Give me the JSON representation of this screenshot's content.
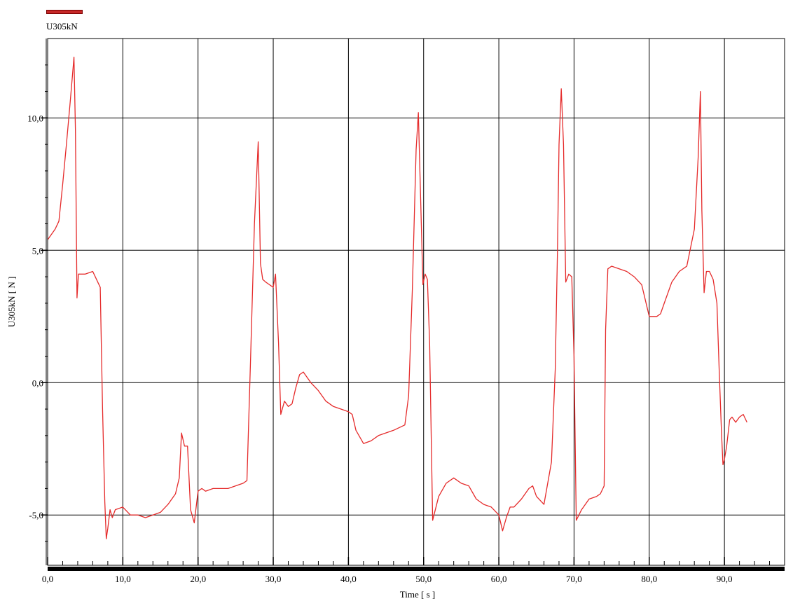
{
  "legend": {
    "label": "U305kN",
    "color": "#c62828"
  },
  "chart_data": {
    "type": "line",
    "title": "",
    "xlabel": "Time [ s ]",
    "ylabel": "U305kN [ N ]",
    "xlim": [
      0,
      98
    ],
    "ylim": [
      -6.9,
      13.0
    ],
    "x_tick_values": [
      0,
      10,
      20,
      30,
      40,
      50,
      60,
      70,
      80,
      90
    ],
    "x_tick_labels": [
      "0,0",
      "10,0",
      "20,0",
      "30,0",
      "40,0",
      "50,0",
      "60,0",
      "70,0",
      "80,0",
      "90,0"
    ],
    "y_tick_values": [
      -5,
      0,
      5,
      10
    ],
    "y_tick_labels": [
      "-5,0",
      "0,0",
      "5,0",
      "10,0"
    ],
    "grid": true,
    "legend_position": "top-left",
    "series": [
      {
        "name": "U305kN",
        "color": "#e52b2b",
        "x": [
          0,
          0.5,
          1.0,
          1.5,
          2.0,
          2.5,
          3.0,
          3.3,
          3.5,
          3.7,
          3.9,
          4.1,
          5.0,
          6.0,
          7.0,
          7.3,
          7.6,
          7.8,
          8.0,
          8.3,
          8.6,
          9.0,
          10.0,
          11.0,
          12.0,
          13.0,
          14.0,
          15.0,
          16.0,
          17.0,
          17.5,
          17.8,
          18.2,
          18.6,
          19.0,
          19.5,
          20.0,
          20.5,
          21.0,
          22.0,
          24.0,
          26.0,
          26.5,
          27.0,
          27.5,
          28.0,
          28.3,
          28.6,
          29.0,
          30.0,
          30.3,
          30.7,
          31.0,
          31.5,
          32.0,
          32.5,
          33.0,
          33.5,
          34.0,
          35.0,
          36.0,
          37.0,
          38.0,
          39.0,
          40.0,
          40.5,
          41.0,
          42.0,
          43.0,
          44.0,
          46.0,
          47.5,
          48.0,
          48.5,
          49.0,
          49.3,
          49.6,
          49.9,
          50.2,
          50.5,
          50.8,
          51.2,
          52.0,
          53.0,
          54.0,
          55.0,
          56.0,
          57.0,
          58.0,
          59.0,
          60.0,
          60.5,
          61.0,
          61.5,
          62.0,
          63.0,
          64.0,
          64.5,
          65.0,
          66.0,
          67.0,
          67.5,
          67.8,
          68.0,
          68.3,
          68.6,
          68.9,
          69.3,
          69.7,
          70.0,
          70.3,
          71.0,
          72.0,
          73.0,
          73.5,
          74.0,
          74.2,
          74.5,
          75.0,
          76.0,
          77.0,
          78.0,
          79.0,
          80.0,
          81.0,
          81.5,
          82.0,
          83.0,
          84.0,
          85.0,
          86.0,
          86.5,
          86.8,
          87.0,
          87.3,
          87.6,
          88.0,
          88.5,
          89.0,
          89.3,
          89.6,
          89.8,
          90.0,
          90.3,
          90.7,
          91.0,
          91.5,
          92.0,
          92.5,
          93.0
        ],
        "y": [
          5.4,
          5.6,
          5.8,
          6.1,
          7.5,
          9.0,
          10.6,
          11.6,
          12.3,
          9.5,
          3.2,
          4.1,
          4.1,
          4.2,
          3.6,
          -1.0,
          -4.5,
          -5.9,
          -5.5,
          -4.8,
          -5.1,
          -4.8,
          -4.7,
          -5.0,
          -5.0,
          -5.1,
          -5.0,
          -4.9,
          -4.6,
          -4.2,
          -3.6,
          -1.9,
          -2.4,
          -2.4,
          -4.8,
          -5.3,
          -4.1,
          -4.0,
          -4.1,
          -4.0,
          -4.0,
          -3.8,
          -3.7,
          1.0,
          6.0,
          9.1,
          4.5,
          3.9,
          3.8,
          3.6,
          4.1,
          1.5,
          -1.2,
          -0.7,
          -0.9,
          -0.8,
          -0.2,
          0.3,
          0.4,
          0.0,
          -0.3,
          -0.7,
          -0.9,
          -1.0,
          -1.1,
          -1.2,
          -1.8,
          -2.3,
          -2.2,
          -2.0,
          -1.8,
          -1.6,
          -0.5,
          3.5,
          8.8,
          10.2,
          7.0,
          3.7,
          4.1,
          3.9,
          1.5,
          -5.2,
          -4.3,
          -3.8,
          -3.6,
          -3.8,
          -3.9,
          -4.4,
          -4.6,
          -4.7,
          -5.0,
          -5.6,
          -5.1,
          -4.7,
          -4.7,
          -4.4,
          -4.0,
          -3.9,
          -4.3,
          -4.6,
          -3.0,
          0.5,
          5.0,
          9.0,
          11.1,
          9.0,
          3.8,
          4.1,
          4.0,
          1.0,
          -5.2,
          -4.8,
          -4.4,
          -4.3,
          -4.2,
          -3.9,
          2.0,
          4.3,
          4.4,
          4.3,
          4.2,
          4.0,
          3.7,
          2.5,
          2.5,
          2.6,
          3.0,
          3.8,
          4.2,
          4.4,
          5.8,
          8.5,
          11.0,
          6.5,
          3.4,
          4.2,
          4.2,
          3.9,
          3.0,
          0.5,
          -1.8,
          -3.1,
          -2.9,
          -2.4,
          -1.4,
          -1.3,
          -1.5,
          -1.3,
          -1.2,
          -1.5
        ]
      }
    ]
  }
}
